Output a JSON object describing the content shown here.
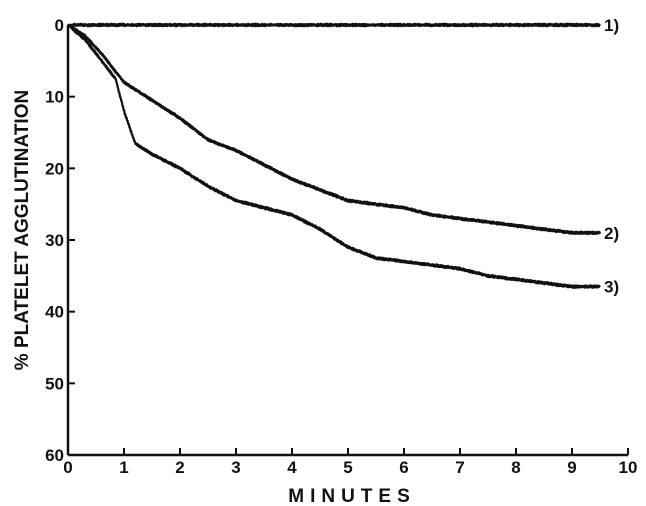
{
  "chart_data": {
    "type": "line",
    "title": "",
    "xlabel": "MINUTES",
    "ylabel": "% PLATELET AGGLUTINATION",
    "xlim": [
      0,
      10
    ],
    "ylim": [
      0,
      60
    ],
    "y_axis_inverted": true,
    "grid": false,
    "xticks": [
      "0",
      "1",
      "2",
      "3",
      "4",
      "5",
      "6",
      "7",
      "8",
      "9",
      "10"
    ],
    "yticks": [
      "0",
      "10",
      "20",
      "30",
      "40",
      "50",
      "60"
    ],
    "line_color": "#111111",
    "series": [
      {
        "name": "1)",
        "x": [
          0,
          0.5,
          1,
          2,
          3,
          4,
          5,
          6,
          7,
          8,
          9,
          9.5
        ],
        "y": [
          0,
          0,
          0,
          0,
          0,
          0,
          0,
          0,
          0,
          0,
          0,
          0
        ]
      },
      {
        "name": "2)",
        "x": [
          0,
          0.3,
          0.6,
          1.0,
          1.5,
          2.0,
          2.5,
          3.0,
          3.5,
          4.0,
          4.5,
          5.0,
          5.5,
          6.0,
          6.5,
          7.0,
          7.5,
          8.0,
          8.5,
          9.0,
          9.5
        ],
        "y": [
          0,
          1.5,
          4,
          8,
          10.5,
          13,
          16,
          17.5,
          19.5,
          21.5,
          23,
          24.5,
          25,
          25.5,
          26.5,
          27,
          27.5,
          28,
          28.5,
          29,
          29
        ]
      },
      {
        "name": "3)",
        "x": [
          0,
          0.3,
          0.6,
          0.85,
          1.0,
          1.2,
          1.5,
          2.0,
          2.5,
          3.0,
          3.5,
          4.0,
          4.5,
          5.0,
          5.5,
          6.0,
          6.5,
          7.0,
          7.5,
          8.0,
          8.5,
          9.0,
          9.5
        ],
        "y": [
          0,
          2,
          5,
          7.5,
          12,
          16.5,
          18,
          20,
          22.5,
          24.5,
          25.5,
          26.5,
          28.5,
          31,
          32.5,
          33,
          33.5,
          34,
          35,
          35.5,
          36,
          36.5,
          36.5
        ]
      }
    ]
  }
}
